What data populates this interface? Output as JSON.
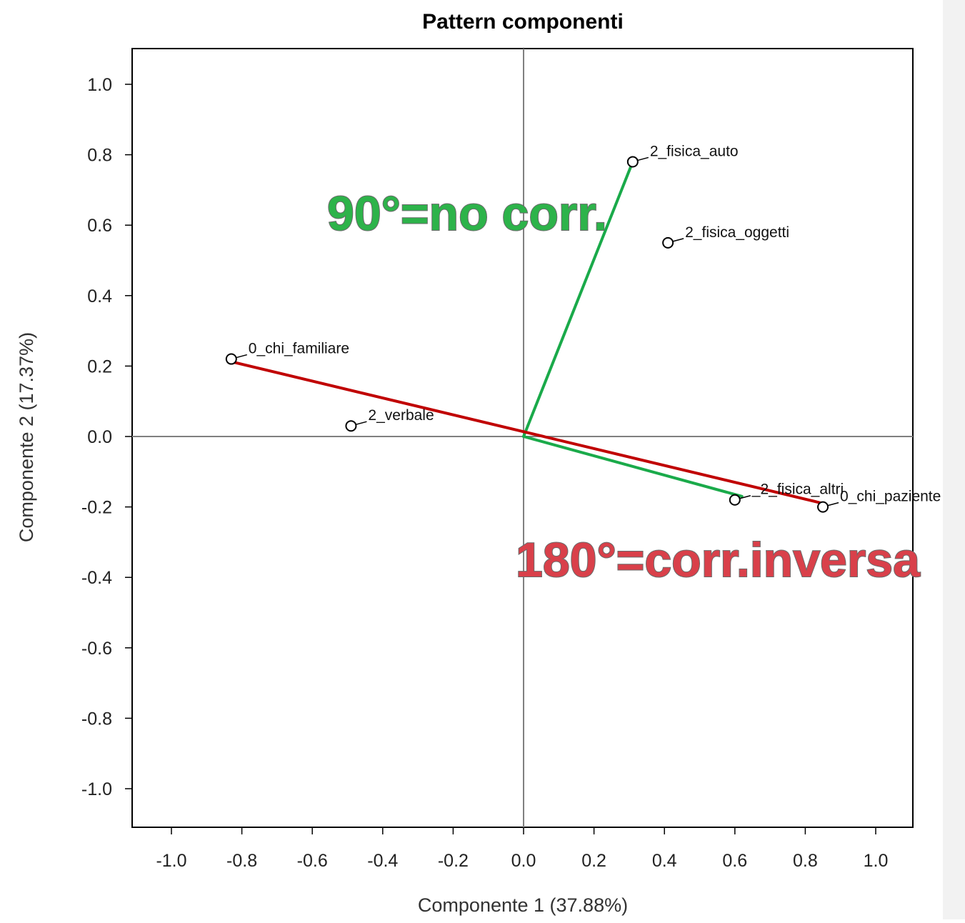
{
  "chart_data": {
    "type": "scatter",
    "title": "Pattern componenti",
    "xlabel": "Componente 1 (37.88%)",
    "ylabel": "Componente 2 (17.37%)",
    "xlim": [
      -1.1,
      1.1
    ],
    "ylim": [
      -1.1,
      1.1
    ],
    "xticks": [
      -1.0,
      -0.8,
      -0.6,
      -0.4,
      -0.2,
      0.0,
      0.2,
      0.4,
      0.6,
      0.8,
      1.0
    ],
    "yticks": [
      1.0,
      0.8,
      0.6,
      0.4,
      0.2,
      0.0,
      -0.2,
      -0.4,
      -0.6,
      -0.8,
      -1.0
    ],
    "xtick_labels": [
      "-1.0",
      "-0.8",
      "-0.6",
      "-0.4",
      "-0.2",
      "0.0",
      "0.2",
      "0.4",
      "0.6",
      "0.8",
      "1.0"
    ],
    "ytick_labels": [
      "1.0",
      "0.8",
      "0.6",
      "0.4",
      "0.2",
      "0.0",
      "-0.2",
      "-0.4",
      "-0.6",
      "-0.8",
      "-1.0"
    ],
    "points": [
      {
        "label": "2_fisica_auto",
        "x": 0.31,
        "y": 0.78
      },
      {
        "label": "2_fisica_oggetti",
        "x": 0.41,
        "y": 0.55
      },
      {
        "label": "0_chi_familiare",
        "x": -0.83,
        "y": 0.22
      },
      {
        "label": "2_verbale",
        "x": -0.49,
        "y": 0.03
      },
      {
        "label": "_2_fisica_altri",
        "x": 0.6,
        "y": -0.18
      },
      {
        "label": "0_chi_paziente",
        "x": 0.85,
        "y": -0.2
      }
    ],
    "vectors": [
      {
        "from": [
          0.0,
          0.0
        ],
        "to": [
          0.31,
          0.78
        ],
        "color": "#1aaa4a"
      },
      {
        "from": [
          0.0,
          0.0
        ],
        "to": [
          0.62,
          -0.17
        ],
        "color": "#1aaa4a"
      },
      {
        "from": [
          -0.82,
          0.21
        ],
        "to": [
          0.85,
          -0.19
        ],
        "color": "#c00000"
      }
    ],
    "annotations": [
      {
        "text": "90°=no corr.",
        "color": "#2db34a"
      },
      {
        "text": "180°=corr.inversa",
        "color": "#d9404a"
      }
    ],
    "grid": false,
    "reference_lines": "x=0, y=0"
  }
}
